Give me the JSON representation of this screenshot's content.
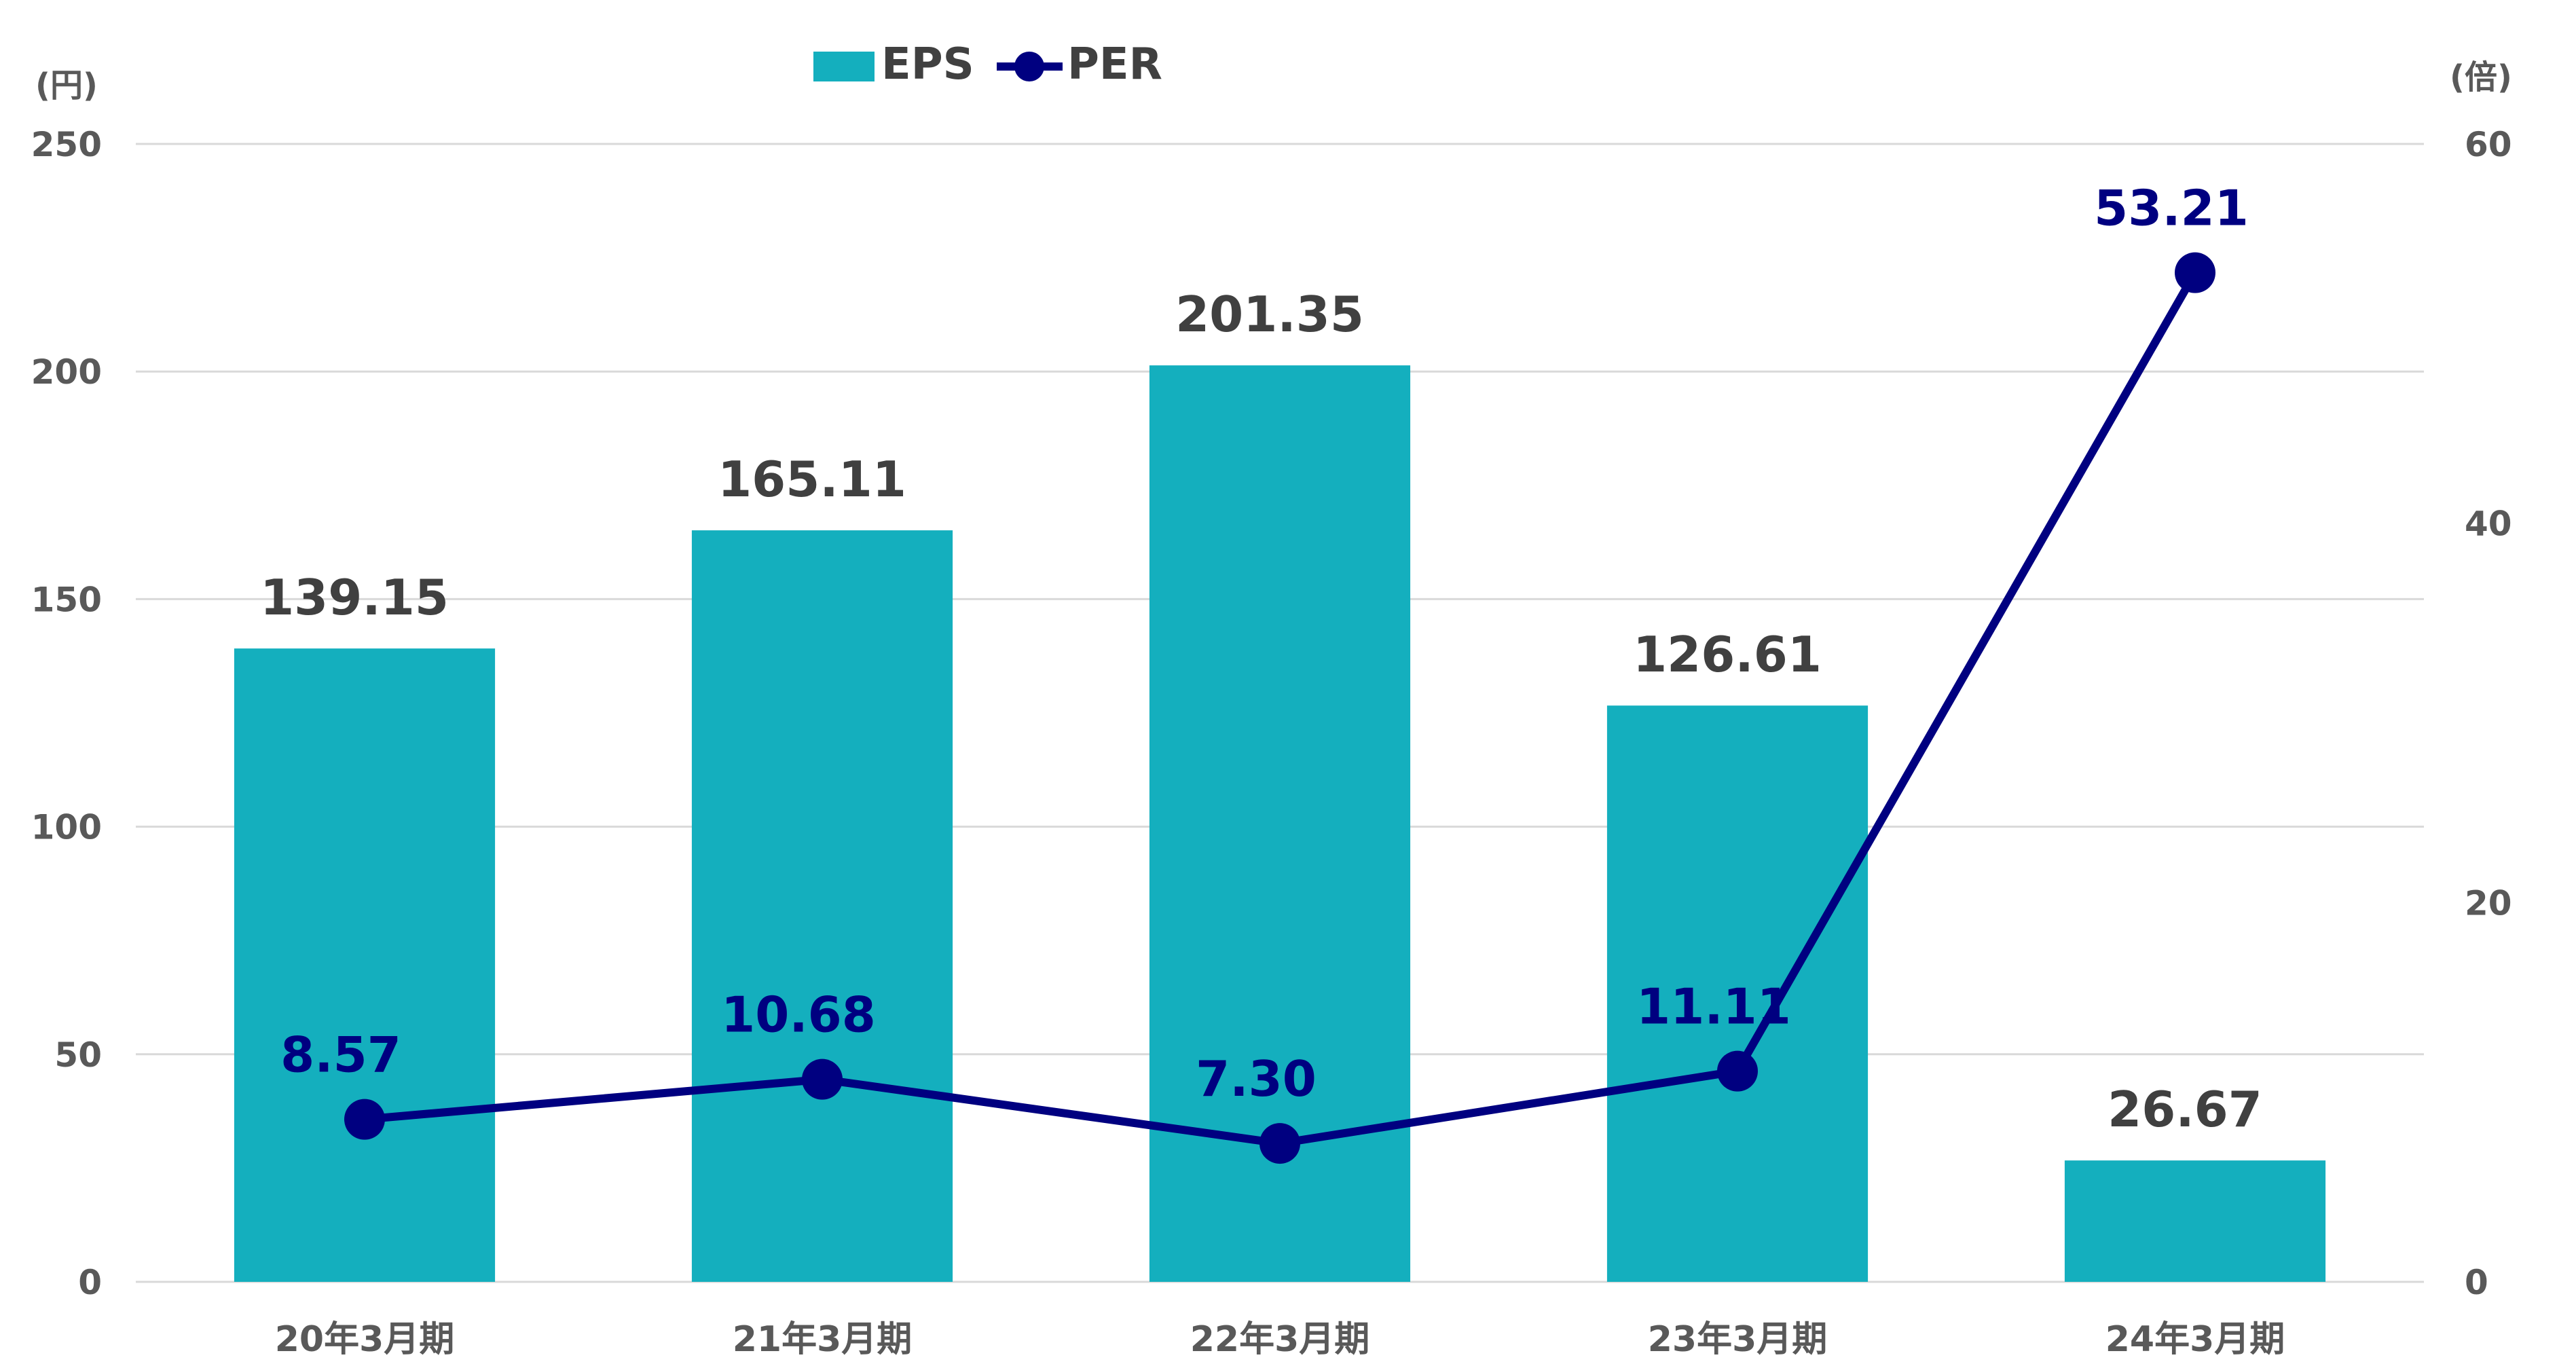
{
  "chart_data": {
    "type": "bar",
    "categories": [
      "20年3月期",
      "21年3月期",
      "22年3月期",
      "23年3月期",
      "24年3月期"
    ],
    "series": [
      {
        "name": "EPS",
        "kind": "bar",
        "axis": "left",
        "values": [
          139.15,
          165.11,
          201.35,
          126.61,
          26.67
        ],
        "labels": [
          "139.15",
          "165.11",
          "201.35",
          "126.61",
          "26.67"
        ]
      },
      {
        "name": "PER",
        "kind": "line",
        "axis": "right",
        "values": [
          8.57,
          10.68,
          7.3,
          11.11,
          53.21
        ],
        "labels": [
          "8.57",
          "10.68",
          "7.30",
          "11.11",
          "53.21"
        ]
      }
    ],
    "left_axis": {
      "unit": "(円)",
      "min": 0,
      "max": 250,
      "ticks": [
        0,
        50,
        100,
        150,
        200,
        250
      ]
    },
    "right_axis": {
      "unit": "(倍)",
      "min": 0,
      "max": 60,
      "ticks": [
        0,
        20,
        40,
        60
      ]
    },
    "grid": true,
    "legend": "top-center",
    "colors": {
      "bar": "#14AFBE",
      "line": "#000080",
      "grid": "#D9D9D9",
      "tick": "#595959",
      "bar_label": "#404040"
    }
  }
}
